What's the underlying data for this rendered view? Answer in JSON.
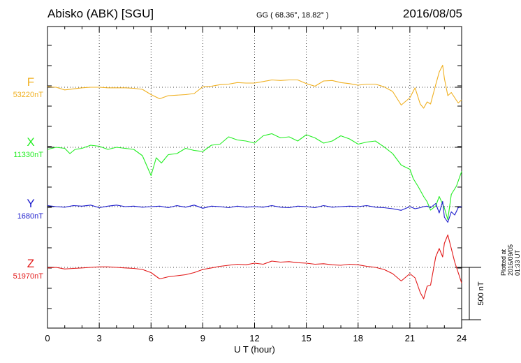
{
  "header": {
    "station": "Abisko (ABK)  [SGU]",
    "coords": "GG ( 68.36°,  18.82° )",
    "date": "2016/08/05"
  },
  "footer": {
    "plotted": "Plotted at 2016/09/05 01:33 UT"
  },
  "chart_data": {
    "type": "line",
    "xlabel": "U T (hour)",
    "xlim": [
      0,
      24
    ],
    "xticks": [
      "0",
      "3",
      "6",
      "9",
      "12",
      "15",
      "18",
      "21",
      "24"
    ],
    "scale_bar": {
      "label": "500 nT",
      "value_nT": 500
    },
    "series": [
      {
        "name": "F",
        "baseline": "53220nT",
        "color": "#f0b020",
        "x": [
          0,
          0.5,
          1,
          1.5,
          2,
          2.5,
          3,
          3.5,
          4,
          4.5,
          5,
          5.5,
          6,
          6.5,
          7,
          7.5,
          8,
          8.5,
          9,
          9.5,
          10,
          10.5,
          11,
          11.5,
          12,
          12.5,
          13,
          13.5,
          14,
          14.5,
          15,
          15.5,
          16,
          16.5,
          17,
          17.5,
          18,
          18.5,
          19,
          19.5,
          20,
          20.5,
          21,
          21.3,
          21.6,
          21.8,
          22,
          22.2,
          22.5,
          22.7,
          22.9,
          23,
          23.2,
          23.4,
          23.6,
          23.8,
          24
        ],
        "y": [
          5,
          0,
          -25,
          -15,
          -5,
          0,
          0,
          -5,
          -5,
          -5,
          -10,
          -20,
          -70,
          -110,
          -80,
          -75,
          -70,
          -60,
          5,
          10,
          25,
          30,
          45,
          40,
          40,
          55,
          70,
          65,
          70,
          70,
          35,
          10,
          60,
          65,
          45,
          35,
          20,
          30,
          30,
          5,
          -40,
          -170,
          -100,
          -5,
          -160,
          -200,
          -140,
          -160,
          25,
          145,
          210,
          85,
          -80,
          -50,
          -100,
          -150,
          -120
        ]
      },
      {
        "name": "X",
        "baseline": "11330nT",
        "color": "#22ee22",
        "x": [
          0,
          0.5,
          1,
          1.3,
          1.6,
          2,
          2.5,
          3,
          3.5,
          4,
          4.5,
          5,
          5.5,
          6,
          6.3,
          6.6,
          7,
          7.5,
          8,
          8.5,
          9,
          9.5,
          10,
          10.5,
          11,
          11.5,
          12,
          12.5,
          13,
          13.5,
          14,
          14.5,
          15,
          15.5,
          16,
          16.5,
          17,
          17.5,
          18,
          18.5,
          19,
          19.5,
          20,
          20.5,
          21,
          21.2,
          21.5,
          21.8,
          22,
          22.2,
          22.5,
          22.7,
          23,
          23.2,
          23.4,
          23.7,
          24
        ],
        "y": [
          -20,
          0,
          -10,
          -60,
          -20,
          -10,
          20,
          10,
          -20,
          0,
          -10,
          -20,
          -80,
          -270,
          -100,
          -150,
          -70,
          -60,
          -10,
          -30,
          -40,
          20,
          30,
          100,
          70,
          60,
          40,
          110,
          130,
          90,
          100,
          60,
          120,
          90,
          40,
          60,
          110,
          80,
          30,
          50,
          60,
          5,
          -60,
          -170,
          -210,
          -300,
          -380,
          -470,
          -520,
          -600,
          -560,
          -470,
          -580,
          -690,
          -450,
          -370,
          -230
        ]
      },
      {
        "name": "Y",
        "baseline": "1680nT",
        "color": "#1a1acc",
        "x": [
          0,
          0.5,
          1,
          1.5,
          2,
          2.5,
          3,
          3.5,
          4,
          4.5,
          5,
          5.5,
          6,
          6.5,
          7,
          7.5,
          8,
          8.5,
          9,
          9.5,
          10,
          10.5,
          11,
          11.5,
          12,
          12.5,
          13,
          13.5,
          14,
          14.5,
          15,
          15.5,
          16,
          16.5,
          17,
          17.5,
          18,
          18.5,
          19,
          19.5,
          20,
          20.5,
          21,
          21.3,
          21.6,
          21.8,
          22,
          22.2,
          22.5,
          22.7,
          22.9,
          23,
          23.2,
          23.4,
          23.6,
          23.8,
          24
        ],
        "y": [
          10,
          0,
          -5,
          10,
          5,
          15,
          -10,
          5,
          15,
          0,
          5,
          -5,
          0,
          5,
          -10,
          10,
          -5,
          15,
          -15,
          5,
          0,
          -10,
          5,
          -5,
          0,
          -5,
          10,
          -5,
          -10,
          5,
          0,
          -10,
          10,
          -5,
          0,
          5,
          0,
          10,
          -5,
          -10,
          -20,
          -35,
          0,
          -20,
          -10,
          0,
          5,
          -10,
          30,
          -60,
          50,
          -100,
          -150,
          -50,
          -80,
          -10,
          0
        ]
      },
      {
        "name": "Z",
        "baseline": "51970nT",
        "color": "#e21818",
        "x": [
          0,
          0.5,
          1,
          1.5,
          2,
          2.5,
          3,
          3.5,
          4,
          4.5,
          5,
          5.5,
          6,
          6.5,
          7,
          7.5,
          8,
          8.5,
          9,
          9.5,
          10,
          10.5,
          11,
          11.5,
          12,
          12.5,
          13,
          13.5,
          14,
          14.5,
          15,
          15.5,
          16,
          16.5,
          17,
          17.5,
          18,
          18.5,
          19,
          19.5,
          20,
          20.5,
          21,
          21.3,
          21.6,
          21.8,
          22,
          22.2,
          22.5,
          22.7,
          22.9,
          23,
          23.2,
          23.4,
          23.6,
          23.8,
          24
        ],
        "y": [
          -5,
          0,
          -15,
          -10,
          -5,
          0,
          5,
          5,
          0,
          -5,
          -10,
          -20,
          -50,
          -110,
          -90,
          -80,
          -70,
          -50,
          -20,
          -5,
          10,
          20,
          30,
          25,
          40,
          30,
          60,
          50,
          55,
          45,
          40,
          30,
          35,
          25,
          20,
          30,
          25,
          10,
          0,
          -20,
          -60,
          -130,
          -60,
          -100,
          -240,
          -300,
          -180,
          -170,
          100,
          180,
          100,
          230,
          310,
          180,
          50,
          -50,
          -150
        ]
      }
    ]
  }
}
